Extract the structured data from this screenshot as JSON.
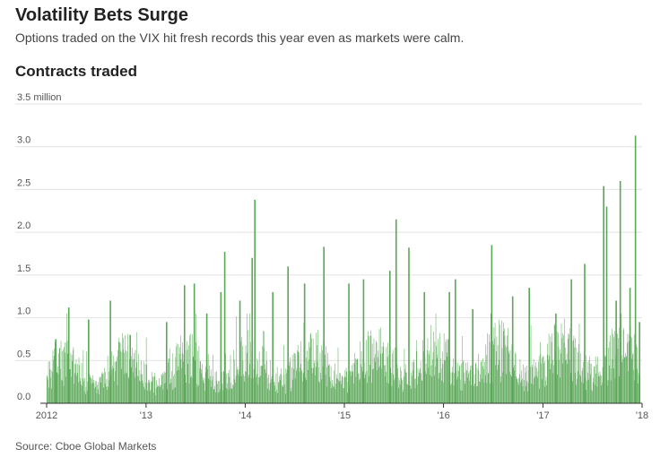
{
  "header": {
    "title": "Volatility Bets Surge",
    "subtitle": "Options traded on the VIX hit fresh records this year even as markets were calm."
  },
  "source": "Source: Cboe Global Markets",
  "colors": {
    "bar": "#5aa757",
    "grid": "#e3e3e3",
    "axis": "#333333"
  },
  "chart_data": {
    "type": "bar",
    "title": "Contracts traded",
    "xlabel": "",
    "ylabel": "",
    "ylim": [
      0,
      3.5
    ],
    "grid": true,
    "y_ticks": [
      {
        "value": 0.0,
        "label": "0.0"
      },
      {
        "value": 0.5,
        "label": "0.5"
      },
      {
        "value": 1.0,
        "label": "1.0"
      },
      {
        "value": 1.5,
        "label": "1.5"
      },
      {
        "value": 2.0,
        "label": "2.0"
      },
      {
        "value": 2.5,
        "label": "2.5"
      },
      {
        "value": 3.0,
        "label": "3.0"
      },
      {
        "value": 3.5,
        "label": "3.5 million"
      }
    ],
    "x_range": [
      "2012-01-01",
      "2018-01-01"
    ],
    "x_ticks": [
      {
        "date": "2012-01-01",
        "label": "2012"
      },
      {
        "date": "2013-01-01",
        "label": "'13"
      },
      {
        "date": "2014-01-01",
        "label": "'14"
      },
      {
        "date": "2015-01-01",
        "label": "'15"
      },
      {
        "date": "2016-01-01",
        "label": "'16"
      },
      {
        "date": "2017-01-01",
        "label": "'17"
      },
      {
        "date": "2018-01-01",
        "label": "'18"
      }
    ],
    "series": [
      {
        "values": [
          {
            "date": "2012-02-01",
            "value": 0.75
          },
          {
            "date": "2012-03-20",
            "value": 1.12
          },
          {
            "date": "2012-06-01",
            "value": 0.98
          },
          {
            "date": "2012-08-20",
            "value": 1.2
          },
          {
            "date": "2012-11-01",
            "value": 0.8
          },
          {
            "date": "2013-03-15",
            "value": 0.95
          },
          {
            "date": "2013-05-20",
            "value": 1.38
          },
          {
            "date": "2013-06-25",
            "value": 1.4
          },
          {
            "date": "2013-08-10",
            "value": 1.05
          },
          {
            "date": "2013-10-01",
            "value": 1.3
          },
          {
            "date": "2013-10-15",
            "value": 1.77
          },
          {
            "date": "2013-12-10",
            "value": 1.2
          },
          {
            "date": "2014-01-24",
            "value": 1.7
          },
          {
            "date": "2014-02-03",
            "value": 2.38
          },
          {
            "date": "2014-04-10",
            "value": 1.3
          },
          {
            "date": "2014-06-05",
            "value": 1.6
          },
          {
            "date": "2014-08-05",
            "value": 1.4
          },
          {
            "date": "2014-10-15",
            "value": 1.83
          },
          {
            "date": "2015-01-15",
            "value": 1.4
          },
          {
            "date": "2015-03-10",
            "value": 1.45
          },
          {
            "date": "2015-06-15",
            "value": 1.55
          },
          {
            "date": "2015-07-08",
            "value": 2.15
          },
          {
            "date": "2015-08-24",
            "value": 1.82
          },
          {
            "date": "2015-10-20",
            "value": 1.3
          },
          {
            "date": "2016-01-20",
            "value": 1.3
          },
          {
            "date": "2016-02-11",
            "value": 1.45
          },
          {
            "date": "2016-04-15",
            "value": 1.1
          },
          {
            "date": "2016-06-24",
            "value": 1.85
          },
          {
            "date": "2016-09-09",
            "value": 1.25
          },
          {
            "date": "2016-11-09",
            "value": 1.35
          },
          {
            "date": "2017-02-15",
            "value": 1.05
          },
          {
            "date": "2017-04-13",
            "value": 1.45
          },
          {
            "date": "2017-06-01",
            "value": 1.63
          },
          {
            "date": "2017-08-10",
            "value": 2.54
          },
          {
            "date": "2017-08-21",
            "value": 2.3
          },
          {
            "date": "2017-09-25",
            "value": 1.2
          },
          {
            "date": "2017-10-10",
            "value": 2.6
          },
          {
            "date": "2017-11-15",
            "value": 1.35
          },
          {
            "date": "2017-12-05",
            "value": 3.13
          },
          {
            "date": "2017-12-20",
            "value": 0.95
          }
        ]
      }
    ],
    "note": "Daily bars; key peaks listed, remaining daily bars fluctuate roughly between 0.1 and 0.9 million."
  }
}
